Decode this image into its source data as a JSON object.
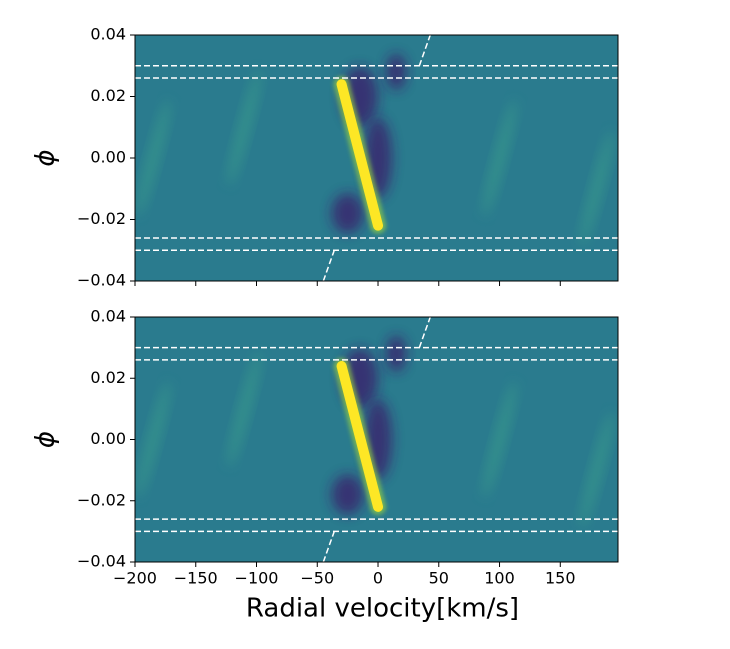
{
  "chart_data": [
    {
      "type": "heatmap",
      "ylabel": "ϕ",
      "background": "#2a7b8e",
      "xlim": [
        -200,
        197.5
      ],
      "ylim": [
        -0.04,
        0.04
      ],
      "xticks": [
        -200,
        -150,
        -100,
        -50,
        0,
        50,
        100,
        150
      ],
      "xticklabels": false,
      "yticks": [
        {
          "value": -0.04,
          "label": "−0.04"
        },
        {
          "value": -0.02,
          "label": "−0.02"
        },
        {
          "value": 0,
          "label": "0.00"
        },
        0.02,
        0.04
      ],
      "hlines": [
        0.03,
        0.026,
        -0.026,
        -0.03
      ],
      "hline_color": "#ffffff",
      "streak": {
        "color": "#fde725",
        "x": [
          -30,
          0
        ],
        "y": [
          0.024,
          -0.022
        ]
      },
      "trail": {
        "color": "#ffffff",
        "x": [
          -45,
          -36,
          null,
          34,
          43
        ],
        "y": [
          -0.04,
          -0.03,
          null,
          0.03,
          0.04
        ]
      }
    },
    {
      "type": "heatmap",
      "ylabel": "ϕ",
      "xlabel": "Radial velocity[km/s]",
      "background": "#2a7b8e",
      "xlim": [
        -200,
        197.5
      ],
      "ylim": [
        -0.04,
        0.04
      ],
      "xticks": [
        {
          "value": -200,
          "label": "−200"
        },
        {
          "value": -150,
          "label": "−150"
        },
        {
          "value": -100,
          "label": "−100"
        },
        {
          "value": -50,
          "label": "−50"
        },
        0,
        50,
        100,
        150
      ],
      "xticklabels": true,
      "yticks": [
        {
          "value": -0.04,
          "label": "−0.04"
        },
        {
          "value": -0.02,
          "label": "−0.02"
        },
        {
          "value": 0,
          "label": "0.00"
        },
        0.02,
        0.04
      ],
      "hlines": [
        0.03,
        0.026,
        -0.026,
        -0.03
      ],
      "hline_color": "#ffffff",
      "streak": {
        "color": "#fde725",
        "x": [
          -30,
          0
        ],
        "y": [
          0.024,
          -0.022
        ]
      },
      "trail": {
        "color": "#ffffff",
        "x": [
          -45,
          -36,
          null,
          34,
          43
        ],
        "y": [
          -0.04,
          -0.03,
          null,
          0.03,
          0.04
        ]
      }
    }
  ]
}
